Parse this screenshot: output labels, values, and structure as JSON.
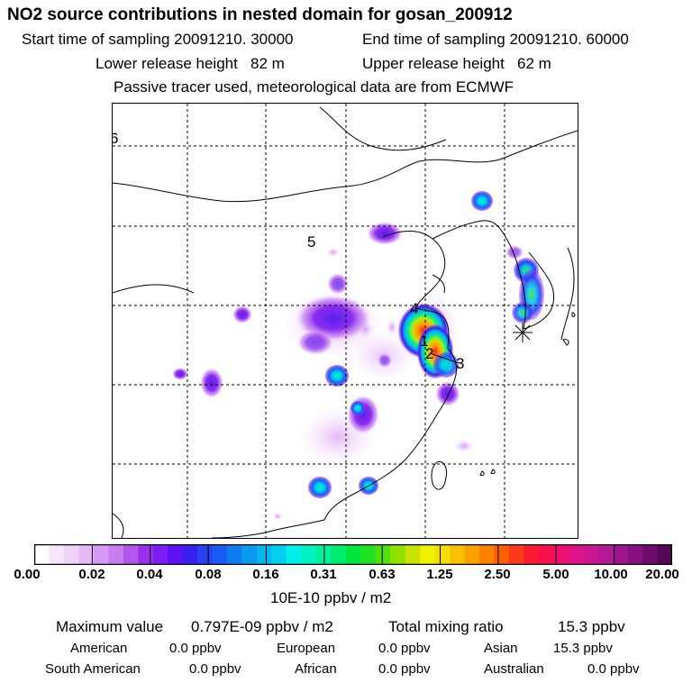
{
  "header": {
    "title": "NO2 source contributions in nested domain for gosan_200912",
    "start_label": "Start time of sampling 20091210. 30000",
    "end_label": "End time of sampling 20091210. 60000",
    "lower_label": "Lower release height   82 m",
    "upper_label": "Upper release height   62 m",
    "tracer_note": "Passive tracer used, meteorological data are from ECMWF"
  },
  "map": {
    "region_labels": [
      "6",
      "5",
      "4",
      "1",
      "2",
      "3"
    ]
  },
  "colorbar": {
    "unit": "10E-10 ppbv / m2",
    "tick_labels": [
      "0.00",
      "0.02",
      "0.04",
      "0.08",
      "0.16",
      "0.31",
      "0.63",
      "1.25",
      "2.50",
      "5.00",
      "10.00",
      "20.00"
    ],
    "colors": [
      "#ffffff",
      "#f7e6fb",
      "#efd2f8",
      "#e6bbf5",
      "#d79af2",
      "#c77cef",
      "#b356ee",
      "#9a2fee",
      "#7d1ef5",
      "#5e12f3",
      "#3a1ff1",
      "#2a40f1",
      "#1a5cf3",
      "#0f7df0",
      "#0a9af0",
      "#06b4f0",
      "#00d0f0",
      "#00f0ec",
      "#00f0c0",
      "#00f09a",
      "#00ee70",
      "#00e640",
      "#20e020",
      "#50e010",
      "#90e000",
      "#c8e400",
      "#f0f000",
      "#f4dc00",
      "#f8c000",
      "#fca000",
      "#fc8000",
      "#fc6000",
      "#fc3a1c",
      "#fc1a30",
      "#f8104c",
      "#f01070",
      "#e01488",
      "#cc1890",
      "#b61a98",
      "#a0148e",
      "#881080",
      "#6e0c6e",
      "#540856"
    ]
  },
  "stats": {
    "max_label": "Maximum value",
    "max_value": "0.797E-09 ppbv / m2",
    "total_label": "Total mixing ratio",
    "total_value": "15.3 ppbv",
    "contributions": [
      {
        "name": "American",
        "value": "0.0 ppbv"
      },
      {
        "name": "European",
        "value": "0.0 ppbv"
      },
      {
        "name": "Asian",
        "value": "15.3 ppbv"
      },
      {
        "name": "South American",
        "value": "0.0 ppbv"
      },
      {
        "name": "African",
        "value": "0.0 ppbv"
      },
      {
        "name": "Australian",
        "value": "0.0 ppbv"
      }
    ]
  },
  "chart_data": {
    "type": "heatmap",
    "title": "NO2 source contributions in nested domain for gosan_200912",
    "value_unit": "10E-10 ppbv / m2",
    "color_scale_breaks": [
      0.0,
      0.02,
      0.04,
      0.08,
      0.16,
      0.31,
      0.63,
      1.25,
      2.5,
      5.0,
      10.0,
      20.0
    ],
    "maximum": "0.797E-09 ppbv / m2",
    "total_mixing_ratio": "15.3 ppbv",
    "grid": true
  }
}
